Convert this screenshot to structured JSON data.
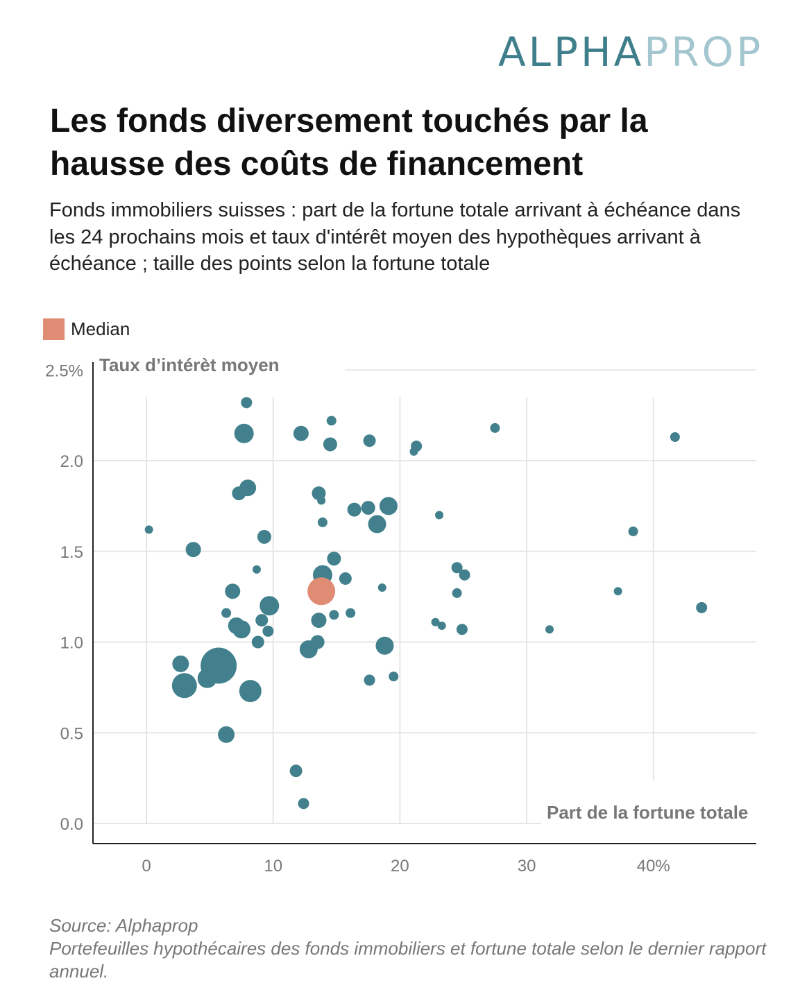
{
  "logo": {
    "part1": "ALPHA",
    "part2": "PROP"
  },
  "header": {
    "title": "Les fonds diversement touchés par la hausse des coûts de financement",
    "subtitle": "Fonds immobiliers suisses : part de la fortune totale arrivant à échéance dans les 24 prochains mois et taux d'intérêt moyen des hypothèques arrivant à échéance ; taille des points selon la fortune totale"
  },
  "legend": {
    "median_label": "Median"
  },
  "colors": {
    "fund": "#41808c",
    "median": "#e08b73",
    "grid": "#e6e6e6",
    "axis": "#222222"
  },
  "chart_data": {
    "type": "scatter",
    "xlabel": "Part de la fortune totale",
    "ylabel": "Taux d’intérèt moyen",
    "xlim": [
      -4,
      48
    ],
    "ylim": [
      -0.1,
      2.5
    ],
    "x_ticks": [
      {
        "v": 0,
        "label": "0"
      },
      {
        "v": 10,
        "label": "10"
      },
      {
        "v": 20,
        "label": "20"
      },
      {
        "v": 30,
        "label": "30"
      },
      {
        "v": 40,
        "label": "40%"
      }
    ],
    "y_ticks": [
      {
        "v": 0,
        "label": "0.0"
      },
      {
        "v": 0.5,
        "label": "0.5"
      },
      {
        "v": 1,
        "label": "1.0"
      },
      {
        "v": 1.5,
        "label": "1.5"
      },
      {
        "v": 2,
        "label": "2.0"
      },
      {
        "v": 2.5,
        "label": "2.5%"
      }
    ],
    "grid": true,
    "size_encoding": "fortune totale (relative)",
    "median": {
      "x": 13.8,
      "y": 1.28,
      "size": 4.0
    },
    "points": [
      {
        "x": 7.9,
        "y": 2.32,
        "size": 0.64
      },
      {
        "x": 7.7,
        "y": 2.15,
        "size": 1.96
      },
      {
        "x": 12.2,
        "y": 2.15,
        "size": 1.21
      },
      {
        "x": 14.6,
        "y": 2.22,
        "size": 0.49
      },
      {
        "x": 14.5,
        "y": 2.09,
        "size": 1.0
      },
      {
        "x": 17.6,
        "y": 2.11,
        "size": 0.81
      },
      {
        "x": 21.3,
        "y": 2.08,
        "size": 0.64
      },
      {
        "x": 21.1,
        "y": 2.05,
        "size": 0.36
      },
      {
        "x": 27.5,
        "y": 2.18,
        "size": 0.49
      },
      {
        "x": 41.7,
        "y": 2.13,
        "size": 0.49
      },
      {
        "x": 8.0,
        "y": 1.85,
        "size": 1.44
      },
      {
        "x": 7.3,
        "y": 1.82,
        "size": 1.0
      },
      {
        "x": 13.6,
        "y": 1.82,
        "size": 1.0
      },
      {
        "x": 13.8,
        "y": 1.78,
        "size": 0.36
      },
      {
        "x": 16.4,
        "y": 1.73,
        "size": 1.0
      },
      {
        "x": 17.5,
        "y": 1.74,
        "size": 1.0
      },
      {
        "x": 19.1,
        "y": 1.75,
        "size": 1.69
      },
      {
        "x": 18.2,
        "y": 1.65,
        "size": 1.69
      },
      {
        "x": 13.9,
        "y": 1.66,
        "size": 0.49
      },
      {
        "x": 23.1,
        "y": 1.7,
        "size": 0.36
      },
      {
        "x": 0.2,
        "y": 1.62,
        "size": 0.36
      },
      {
        "x": 9.3,
        "y": 1.58,
        "size": 1.0
      },
      {
        "x": 3.7,
        "y": 1.51,
        "size": 1.21
      },
      {
        "x": 38.4,
        "y": 1.61,
        "size": 0.49
      },
      {
        "x": 14.8,
        "y": 1.46,
        "size": 1.0
      },
      {
        "x": 13.9,
        "y": 1.37,
        "size": 1.96
      },
      {
        "x": 15.7,
        "y": 1.35,
        "size": 0.81
      },
      {
        "x": 8.7,
        "y": 1.4,
        "size": 0.36
      },
      {
        "x": 6.8,
        "y": 1.28,
        "size": 1.21
      },
      {
        "x": 18.6,
        "y": 1.3,
        "size": 0.36
      },
      {
        "x": 24.5,
        "y": 1.41,
        "size": 0.64
      },
      {
        "x": 25.1,
        "y": 1.37,
        "size": 0.64
      },
      {
        "x": 24.5,
        "y": 1.27,
        "size": 0.49
      },
      {
        "x": 37.2,
        "y": 1.28,
        "size": 0.36
      },
      {
        "x": 43.8,
        "y": 1.19,
        "size": 0.64
      },
      {
        "x": 6.3,
        "y": 1.16,
        "size": 0.49
      },
      {
        "x": 9.7,
        "y": 1.2,
        "size": 1.96
      },
      {
        "x": 14.8,
        "y": 1.15,
        "size": 0.49
      },
      {
        "x": 16.1,
        "y": 1.16,
        "size": 0.49
      },
      {
        "x": 13.6,
        "y": 1.12,
        "size": 1.21
      },
      {
        "x": 9.1,
        "y": 1.12,
        "size": 0.81
      },
      {
        "x": 7.1,
        "y": 1.09,
        "size": 1.44
      },
      {
        "x": 7.5,
        "y": 1.07,
        "size": 1.69
      },
      {
        "x": 9.6,
        "y": 1.06,
        "size": 0.64
      },
      {
        "x": 8.8,
        "y": 1.0,
        "size": 0.81
      },
      {
        "x": 13.5,
        "y": 1.0,
        "size": 1.0
      },
      {
        "x": 12.8,
        "y": 0.96,
        "size": 1.69
      },
      {
        "x": 18.7,
        "y": 1.0,
        "size": 0.49
      },
      {
        "x": 18.8,
        "y": 0.98,
        "size": 1.69
      },
      {
        "x": 22.8,
        "y": 1.11,
        "size": 0.36
      },
      {
        "x": 23.3,
        "y": 1.09,
        "size": 0.36
      },
      {
        "x": 24.9,
        "y": 1.07,
        "size": 0.64
      },
      {
        "x": 31.8,
        "y": 1.07,
        "size": 0.36
      },
      {
        "x": 2.7,
        "y": 0.88,
        "size": 1.44
      },
      {
        "x": 5.7,
        "y": 0.87,
        "size": 6.76
      },
      {
        "x": 4.8,
        "y": 0.8,
        "size": 1.96
      },
      {
        "x": 3.0,
        "y": 0.76,
        "size": 3.24
      },
      {
        "x": 8.2,
        "y": 0.73,
        "size": 2.56
      },
      {
        "x": 17.6,
        "y": 0.79,
        "size": 0.64
      },
      {
        "x": 19.5,
        "y": 0.81,
        "size": 0.49
      },
      {
        "x": 6.3,
        "y": 0.49,
        "size": 1.44
      },
      {
        "x": 11.8,
        "y": 0.29,
        "size": 0.81
      },
      {
        "x": 12.4,
        "y": 0.11,
        "size": 0.64
      }
    ]
  },
  "footer": {
    "source": "Source: Alphaprop",
    "note": "Portefeuilles hypothécaires des fonds immobiliers et fortune totale selon le dernier rapport annuel."
  }
}
